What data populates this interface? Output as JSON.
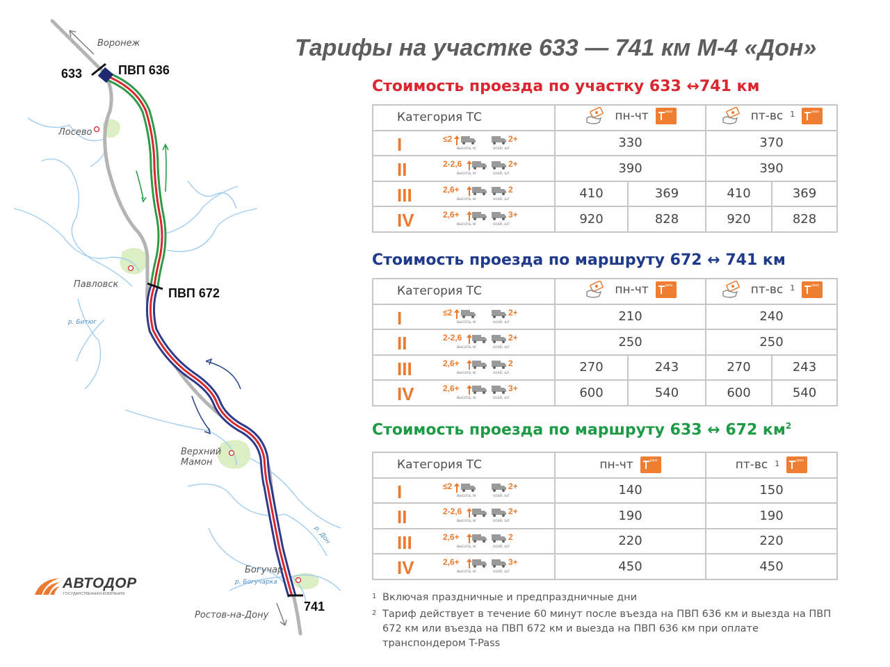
{
  "title": "Тарифы на участке 633 — 741 км М-4 «Дон»",
  "map": {
    "places": {
      "voronezh": "Воронеж",
      "losevo": "Лосево",
      "pavlovsk": "Павловск",
      "verkhny_mamon_1": "Верхний",
      "verkhny_mamon_2": "Мамон",
      "boguchar": "Богучар",
      "rostov": "Ростов-на-Дону"
    },
    "rivers": {
      "bityug": "р. Битюг",
      "don": "р. Дон",
      "bogucharka": "р. Богучарка"
    },
    "km_markers": {
      "km633": "633",
      "pvp636": "ПВП 636",
      "pvp672": "ПВП 672",
      "km741": "741"
    },
    "colors": {
      "section_633_672": "#2e9a46",
      "section_672_741": "#2d3a8c",
      "stripe": "#d9262f",
      "road": "#b4b4b4",
      "river": "#9fcdf0"
    }
  },
  "logo": {
    "name": "АВТОДОР",
    "subtitle": "ГОСУДАРСТВЕННАЯ КОМПАНИЯ"
  },
  "headers": {
    "category": "Категория ТС",
    "weekday": "пн-чт",
    "weekend": "пт-вс",
    "weekend_note": "1"
  },
  "specs": {
    "labels": {
      "height": "высота, м",
      "axles": "осей, шт"
    },
    "rows": [
      {
        "roman": "I",
        "height": "≤2",
        "axles": "2+"
      },
      {
        "roman": "II",
        "height": "2-2,6",
        "axles": "2+"
      },
      {
        "roman": "III",
        "height": "2,6+",
        "axles": "2"
      },
      {
        "roman": "IV",
        "height": "2,6+",
        "axles": "3+"
      }
    ]
  },
  "sections": [
    {
      "title": "Стоимость проезда по участку 633 ↔741 км",
      "title_sup": "",
      "color": "#d9262f",
      "rows": [
        {
          "weekday": [
            "330"
          ],
          "weekend": [
            "370"
          ]
        },
        {
          "weekday": [
            "390"
          ],
          "weekend": [
            "390"
          ]
        },
        {
          "weekday": [
            "410",
            "369"
          ],
          "weekend": [
            "410",
            "369"
          ]
        },
        {
          "weekday": [
            "920",
            "828"
          ],
          "weekend": [
            "920",
            "828"
          ]
        }
      ]
    },
    {
      "title": "Стоимость проезда по маршруту 672 ↔ 741 км",
      "title_sup": "",
      "color": "#1f3a8a",
      "rows": [
        {
          "weekday": [
            "210"
          ],
          "weekend": [
            "240"
          ]
        },
        {
          "weekday": [
            "250"
          ],
          "weekend": [
            "250"
          ]
        },
        {
          "weekday": [
            "270",
            "243"
          ],
          "weekend": [
            "270",
            "243"
          ]
        },
        {
          "weekday": [
            "600",
            "540"
          ],
          "weekend": [
            "600",
            "540"
          ]
        }
      ]
    },
    {
      "title": "Стоимость проезда по маршруту 633 ↔ 672 км",
      "title_sup": "2",
      "color": "#1e9a46",
      "rows": [
        {
          "weekday": [
            "140"
          ],
          "weekend": [
            "150"
          ]
        },
        {
          "weekday": [
            "190"
          ],
          "weekend": [
            "190"
          ]
        },
        {
          "weekday": [
            "220"
          ],
          "weekend": [
            "220"
          ]
        },
        {
          "weekday": [
            "450"
          ],
          "weekend": [
            "450"
          ]
        }
      ]
    }
  ],
  "footnotes": [
    {
      "n": "1",
      "text": "Включая праздничные и предпраздничные дни"
    },
    {
      "n": "2",
      "text": "Тариф действует в течение 60 минут после въезда на ПВП 636 км и выезда на ПВП 672 км или въезда на ПВП 672 км и выезда на ПВП 636 км при оплате транспондером T-Pass"
    }
  ],
  "accent_color": "#ec7a2e"
}
